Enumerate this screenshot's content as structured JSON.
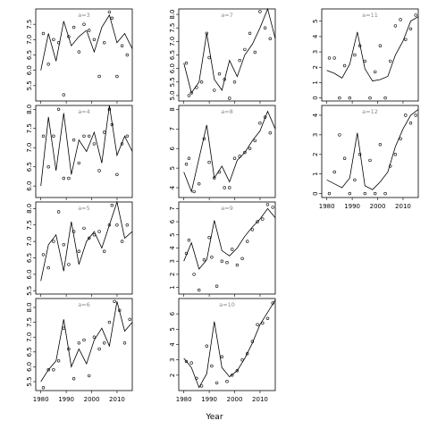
{
  "figure": {
    "xlabel": "Year"
  },
  "chart_data": [
    {
      "type": "line",
      "title": "a=3",
      "ylim": [
        5,
        8
      ],
      "yticks": [
        "5.5",
        "6.0",
        "6.5",
        "7.0",
        "7.5"
      ],
      "x": [
        1980,
        1983,
        1986,
        1989,
        1992,
        1995,
        1998,
        2001,
        2004,
        2007,
        2010,
        2013,
        2016
      ],
      "fitted": [
        6.0,
        7.2,
        6.3,
        7.6,
        6.8,
        7.1,
        7.3,
        6.6,
        7.4,
        7.8,
        6.9,
        7.2,
        6.7
      ],
      "points_x": [
        1981,
        1983,
        1985,
        1987,
        1989,
        1991,
        1993,
        1995,
        1997,
        1999,
        2001,
        2003,
        2005,
        2007,
        2008,
        2010,
        2012,
        2014
      ],
      "points_y": [
        7.2,
        6.2,
        7.0,
        6.9,
        5.2,
        7.1,
        7.4,
        6.6,
        7.5,
        7.3,
        7.0,
        5.8,
        6.9,
        7.9,
        7.7,
        5.8,
        6.8,
        6.5
      ]
    },
    {
      "type": "line",
      "title": "a=7",
      "ylim": [
        4.8,
        8.2
      ],
      "yticks": [
        "5.0",
        "5.5",
        "6.0",
        "6.5",
        "7.0",
        "7.5",
        "8.0"
      ],
      "x": [
        1980,
        1983,
        1986,
        1989,
        1992,
        1995,
        1998,
        2001,
        2004,
        2007,
        2010,
        2013,
        2016
      ],
      "fitted": [
        6.2,
        5.1,
        5.5,
        7.3,
        5.6,
        5.2,
        6.3,
        5.7,
        6.5,
        6.9,
        7.5,
        8.2,
        7.1
      ],
      "points_x": [
        1981,
        1982,
        1983,
        1985,
        1987,
        1989,
        1990,
        1992,
        1994,
        1996,
        1998,
        2000,
        2002,
        2004,
        2006,
        2008,
        2010,
        2012,
        2014
      ],
      "points_y": [
        6.2,
        5.0,
        5.1,
        5.3,
        5.5,
        7.3,
        6.4,
        5.2,
        5.8,
        5.6,
        4.9,
        5.5,
        6.3,
        6.7,
        7.3,
        6.6,
        8.1,
        7.5,
        7.1
      ]
    },
    {
      "type": "line",
      "title": "a=11",
      "ylim": [
        -0.2,
        5.8
      ],
      "yticks": [
        "0",
        "1",
        "2",
        "3",
        "4",
        "5"
      ],
      "x": [
        1980,
        1983,
        1986,
        1989,
        1992,
        1995,
        1998,
        2001,
        2004,
        2007,
        2010,
        2013,
        2016
      ],
      "fitted": [
        1.8,
        1.6,
        1.3,
        2.2,
        4.3,
        1.9,
        1.1,
        1.2,
        1.4,
        2.8,
        3.7,
        5.0,
        5.3
      ],
      "points_x": [
        1981,
        1983,
        1985,
        1987,
        1989,
        1991,
        1993,
        1995,
        1997,
        1999,
        2001,
        2003,
        2005,
        2007,
        2009,
        2011,
        2013,
        2015
      ],
      "points_y": [
        2.6,
        2.6,
        0.0,
        2.1,
        0.0,
        2.8,
        3.4,
        2.4,
        0.0,
        1.7,
        3.4,
        0.0,
        2.4,
        4.7,
        5.1,
        3.8,
        4.5,
        5.4
      ]
    },
    {
      "type": "line",
      "title": "a=4",
      "ylim": [
        5.7,
        8.1
      ],
      "yticks": [
        "6.0",
        "6.5",
        "7.0",
        "7.5",
        "8.0"
      ],
      "x": [
        1980,
        1983,
        1986,
        1989,
        1992,
        1995,
        1998,
        2001,
        2004,
        2007,
        2010,
        2013,
        2016
      ],
      "fitted": [
        6.0,
        7.8,
        6.4,
        7.9,
        6.3,
        7.2,
        6.9,
        7.4,
        6.6,
        8.1,
        6.8,
        7.3,
        6.9
      ],
      "points_x": [
        1981,
        1983,
        1985,
        1987,
        1989,
        1991,
        1993,
        1995,
        1997,
        1999,
        2001,
        2003,
        2005,
        2007,
        2008,
        2010,
        2012,
        2014
      ],
      "points_y": [
        7.3,
        6.5,
        7.3,
        8.0,
        6.2,
        6.2,
        7.2,
        6.6,
        7.3,
        7.3,
        7.1,
        6.4,
        7.4,
        8.0,
        7.6,
        6.3,
        7.1,
        7.3
      ]
    },
    {
      "type": "line",
      "title": "a=8",
      "ylim": [
        3.5,
        8.2
      ],
      "yticks": [
        "4",
        "5",
        "6",
        "7",
        "8"
      ],
      "x": [
        1980,
        1983,
        1986,
        1989,
        1992,
        1995,
        1998,
        2001,
        2004,
        2007,
        2010,
        2013,
        2016
      ],
      "fitted": [
        4.8,
        3.8,
        5.5,
        7.2,
        4.5,
        5.1,
        4.3,
        5.4,
        5.8,
        6.4,
        6.9,
        7.9,
        7.0
      ],
      "points_x": [
        1981,
        1982,
        1984,
        1986,
        1988,
        1990,
        1992,
        1994,
        1996,
        1998,
        2000,
        2002,
        2004,
        2006,
        2008,
        2010,
        2012,
        2014
      ],
      "points_y": [
        5.2,
        5.5,
        3.8,
        4.2,
        6.5,
        5.3,
        4.5,
        4.8,
        4.0,
        4.0,
        5.5,
        5.6,
        5.8,
        6.0,
        6.4,
        7.3,
        7.6,
        6.8
      ]
    },
    {
      "type": "line",
      "title": "a=12",
      "ylim": [
        -0.2,
        4.5
      ],
      "yticks": [
        "0",
        "1",
        "2",
        "3",
        "4"
      ],
      "x": [
        1980,
        1983,
        1986,
        1989,
        1992,
        1995,
        1998,
        2001,
        2004,
        2007,
        2010,
        2013,
        2016
      ],
      "fitted": [
        0.7,
        0.5,
        0.3,
        0.8,
        3.1,
        0.4,
        0.2,
        0.6,
        1.1,
        2.4,
        3.3,
        4.0,
        4.3
      ],
      "points_x": [
        1981,
        1983,
        1985,
        1987,
        1989,
        1991,
        1993,
        1995,
        1997,
        1999,
        2001,
        2003,
        2005,
        2007,
        2009,
        2011,
        2013,
        2015
      ],
      "points_y": [
        0.0,
        1.1,
        3.0,
        1.8,
        0.0,
        0.7,
        2.0,
        0.0,
        1.7,
        0.0,
        2.5,
        0.0,
        1.4,
        2.0,
        2.8,
        4.0,
        3.6,
        4.0
      ]
    },
    {
      "type": "line",
      "title": "a=5",
      "ylim": [
        5.4,
        8.2
      ],
      "yticks": [
        "5.5",
        "6.0",
        "6.5",
        "7.0",
        "7.5",
        "8.0"
      ],
      "x": [
        1980,
        1983,
        1986,
        1989,
        1992,
        1995,
        1998,
        2001,
        2004,
        2007,
        2010,
        2013,
        2016
      ],
      "fitted": [
        5.8,
        6.9,
        7.2,
        6.1,
        7.6,
        6.3,
        7.0,
        7.3,
        6.8,
        7.5,
        8.2,
        7.1,
        7.3
      ],
      "points_x": [
        1981,
        1983,
        1985,
        1987,
        1989,
        1991,
        1993,
        1995,
        1997,
        1999,
        2001,
        2003,
        2005,
        2007,
        2008,
        2010,
        2012,
        2014
      ],
      "points_y": [
        6.6,
        6.2,
        7.0,
        7.9,
        6.9,
        6.3,
        7.3,
        6.7,
        7.4,
        7.1,
        7.2,
        7.3,
        6.7,
        7.5,
        8.1,
        7.5,
        7.0,
        7.5
      ]
    },
    {
      "type": "line",
      "title": "a=9",
      "ylim": [
        0.5,
        7.5
      ],
      "yticks": [
        "1",
        "2",
        "3",
        "4",
        "5",
        "6",
        "7"
      ],
      "x": [
        1980,
        1983,
        1986,
        1989,
        1992,
        1995,
        1998,
        2001,
        2004,
        2007,
        2010,
        2013,
        2016
      ],
      "fitted": [
        3.0,
        4.4,
        2.4,
        3.1,
        6.1,
        3.8,
        3.4,
        4.0,
        4.9,
        5.6,
        6.2,
        7.0,
        6.3
      ],
      "points_x": [
        1981,
        1982,
        1984,
        1986,
        1988,
        1990,
        1991,
        1993,
        1995,
        1997,
        1999,
        2001,
        2003,
        2005,
        2007,
        2009,
        2011,
        2013,
        2015
      ],
      "points_y": [
        3.6,
        4.6,
        2.0,
        0.8,
        3.1,
        4.8,
        3.3,
        1.1,
        3.0,
        2.9,
        3.9,
        2.7,
        3.2,
        4.5,
        5.4,
        6.0,
        6.2,
        7.3,
        7.1
      ]
    },
    {
      "type": "line",
      "title": "a=6",
      "ylim": [
        5.2,
        8.3
      ],
      "yticks": [
        "5.5",
        "6.0",
        "6.5",
        "7.0",
        "7.5",
        "8.0"
      ],
      "x": [
        1980,
        1983,
        1986,
        1989,
        1992,
        1995,
        1998,
        2001,
        2004,
        2007,
        2010,
        2013,
        2016
      ],
      "fitted": [
        5.5,
        5.9,
        6.2,
        7.6,
        6.0,
        6.6,
        6.1,
        6.9,
        7.3,
        6.7,
        8.2,
        7.2,
        7.5
      ],
      "points_x": [
        1981,
        1983,
        1985,
        1987,
        1989,
        1991,
        1993,
        1995,
        1997,
        1999,
        2001,
        2003,
        2005,
        2007,
        2009,
        2011,
        2013,
        2015
      ],
      "points_y": [
        5.3,
        5.9,
        5.9,
        6.2,
        7.3,
        6.6,
        5.6,
        6.8,
        6.9,
        5.7,
        7.0,
        6.6,
        6.8,
        7.5,
        8.2,
        7.9,
        6.8,
        7.6
      ]
    },
    {
      "type": "line",
      "title": "a=10",
      "ylim": [
        1.0,
        7.0
      ],
      "yticks": [
        "2",
        "3",
        "4",
        "5",
        "6"
      ],
      "x": [
        1980,
        1983,
        1986,
        1989,
        1992,
        1995,
        1998,
        2001,
        2004,
        2007,
        2010,
        2013,
        2016
      ],
      "fitted": [
        3.1,
        2.5,
        1.2,
        2.1,
        5.5,
        2.5,
        1.9,
        2.3,
        3.1,
        4.1,
        5.3,
        6.1,
        6.9
      ],
      "points_x": [
        1981,
        1983,
        1985,
        1987,
        1989,
        1991,
        1993,
        1995,
        1997,
        1999,
        2001,
        2003,
        2005,
        2007,
        2009,
        2011,
        2013,
        2015
      ],
      "points_y": [
        2.9,
        2.8,
        1.8,
        1.3,
        3.9,
        2.6,
        1.5,
        3.2,
        1.6,
        2.0,
        2.3,
        3.0,
        3.4,
        4.2,
        5.3,
        5.4,
        5.7,
        6.7
      ]
    }
  ]
}
